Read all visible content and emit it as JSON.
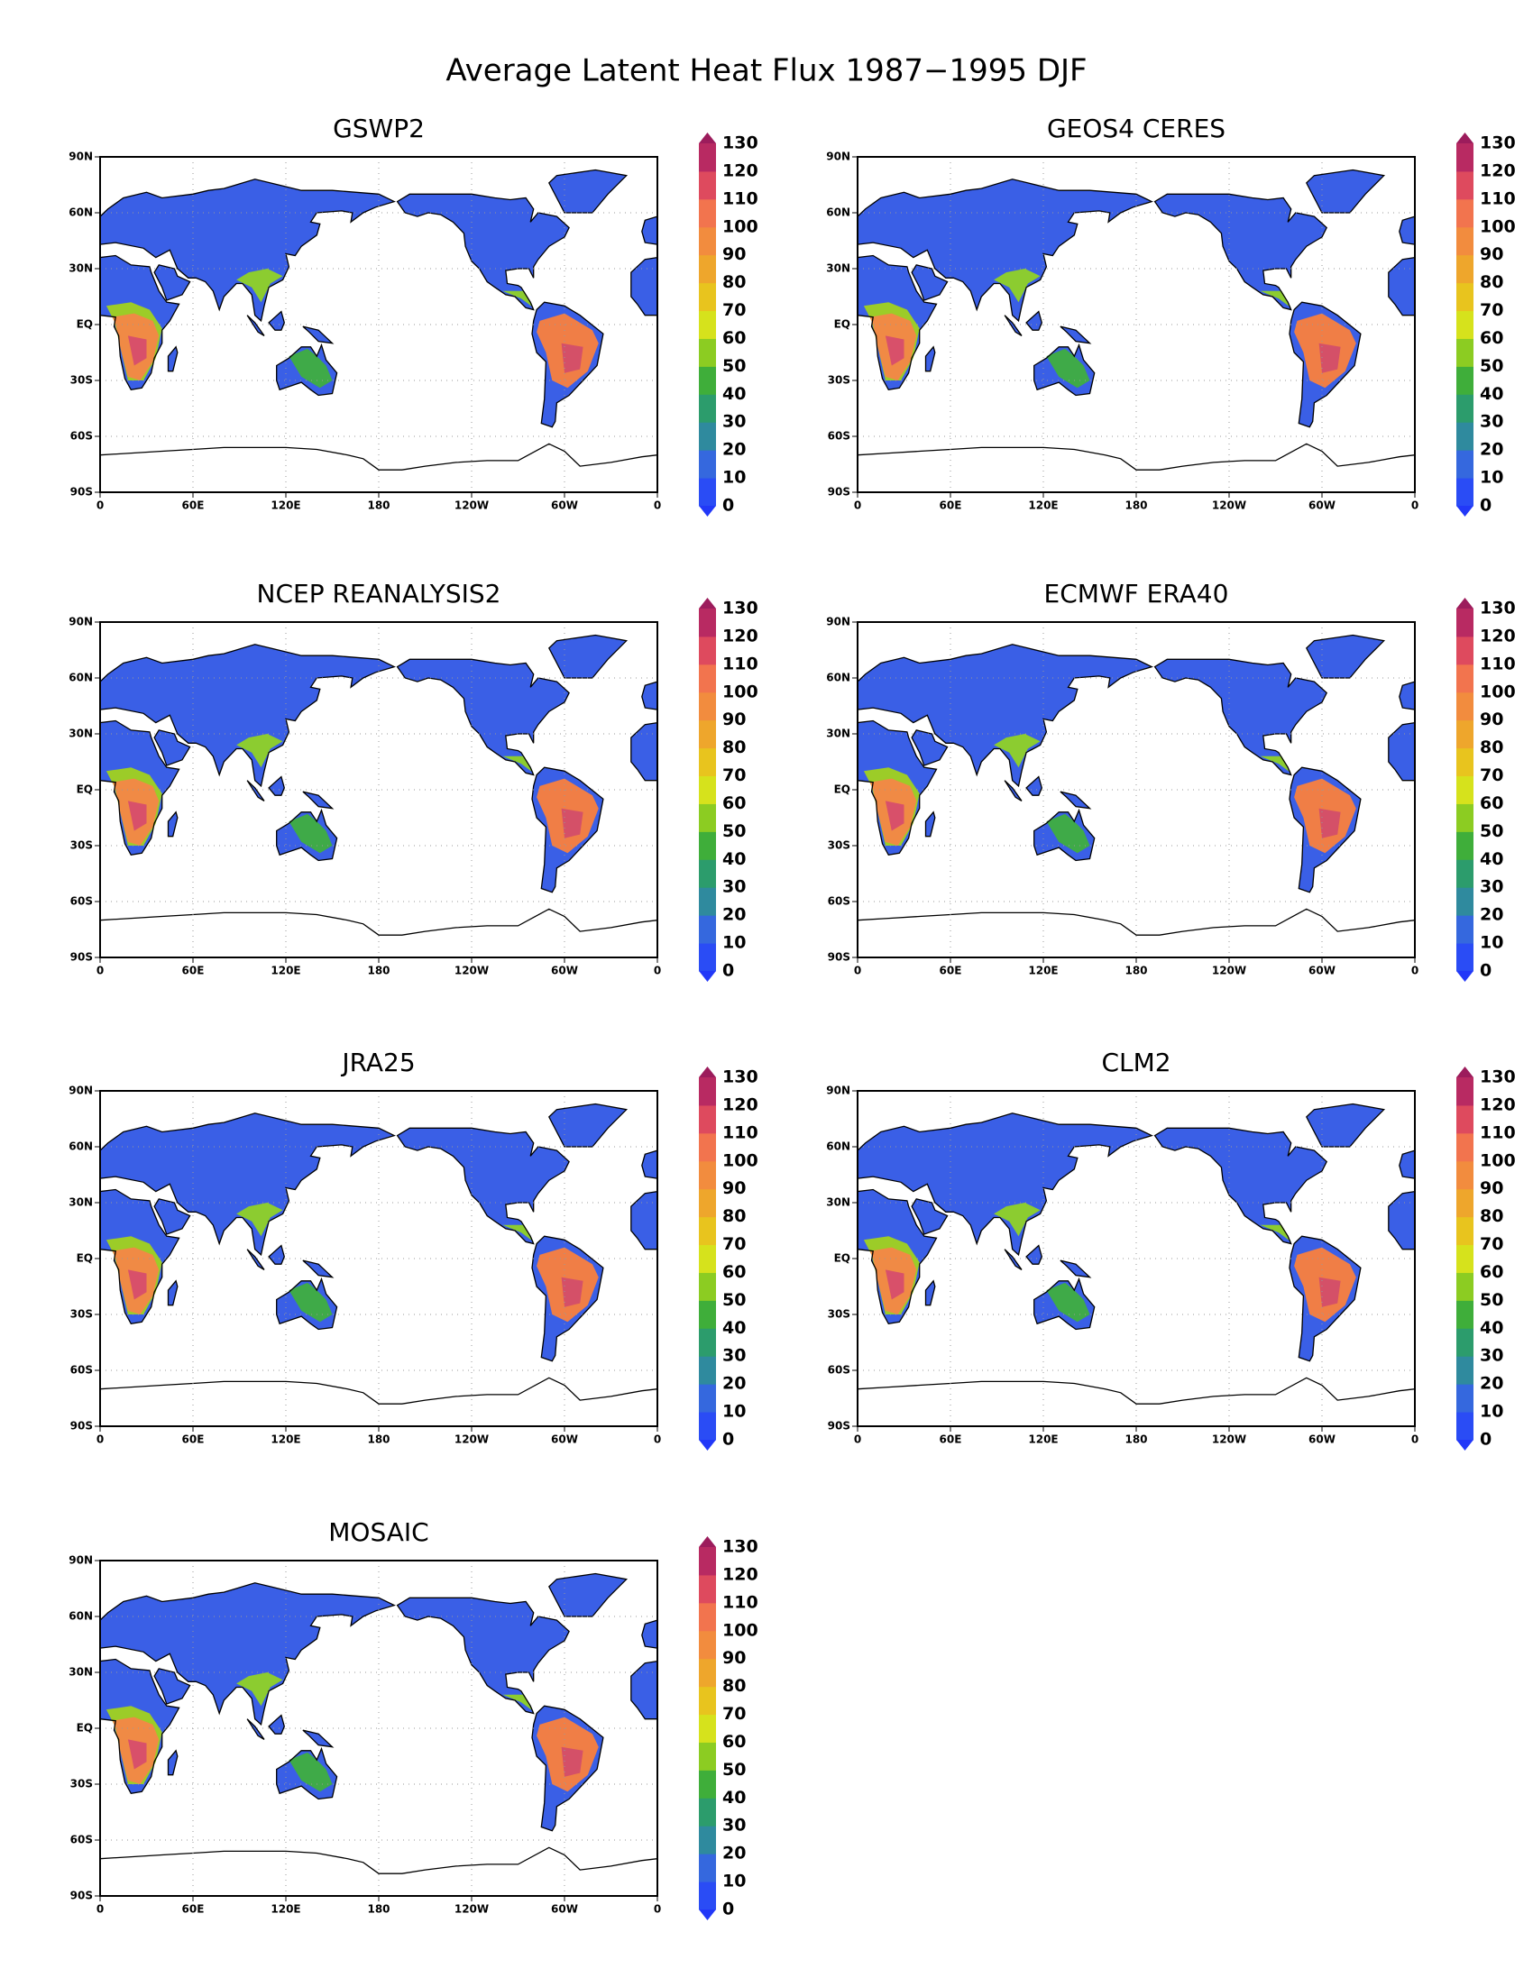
{
  "title": "Average Latent Heat Flux 1987−1995  DJF",
  "panels": [
    {
      "title": "GSWP2"
    },
    {
      "title": "GEOS4 CERES"
    },
    {
      "title": "NCEP REANALYSIS2"
    },
    {
      "title": "ECMWF ERA40"
    },
    {
      "title": "JRA25"
    },
    {
      "title": "CLM2"
    },
    {
      "title": "MOSAIC"
    }
  ],
  "lat_ticks": [
    "90N",
    "60N",
    "30N",
    "EQ",
    "30S",
    "60S",
    "90S"
  ],
  "lon_ticks": [
    "0",
    "60E",
    "120E",
    "180",
    "120W",
    "60W",
    "0"
  ],
  "colorbar": {
    "ticks": [
      0,
      10,
      20,
      30,
      40,
      50,
      60,
      70,
      80,
      90,
      100,
      110,
      120,
      130
    ],
    "colors": [
      "#2a4cf5",
      "#3568de",
      "#2f8a9e",
      "#2c9c6c",
      "#3fae3a",
      "#8ccc22",
      "#d6e21c",
      "#e8c41e",
      "#eea62c",
      "#f28c3e",
      "#f2744e",
      "#de4a5e",
      "#b82a62"
    ],
    "under_color": "#2238f8",
    "over_color": "#9c1c5c"
  }
}
